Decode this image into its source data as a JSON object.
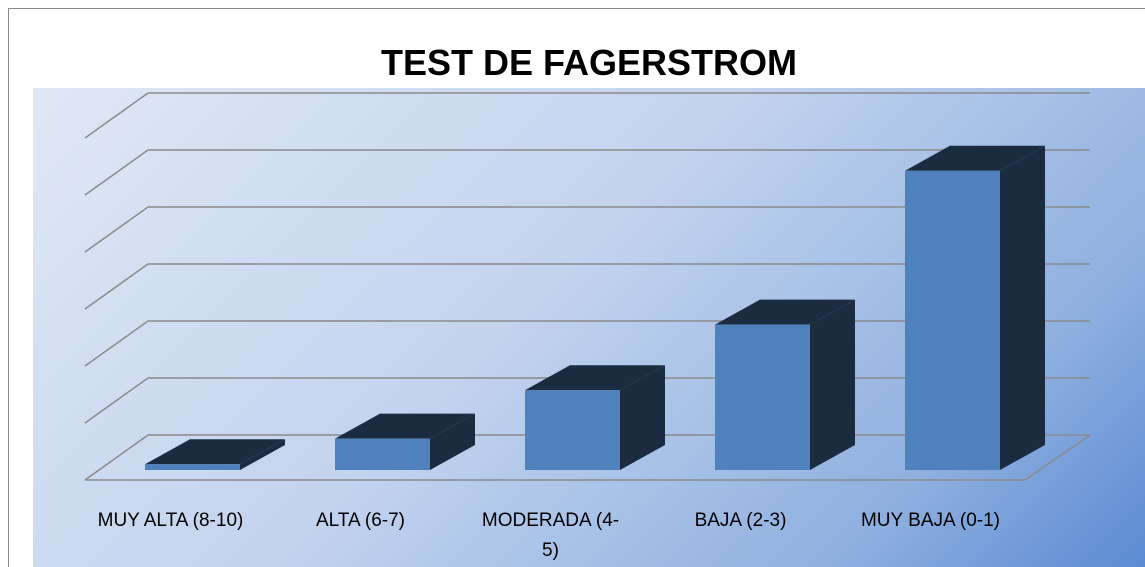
{
  "chart_data": {
    "type": "bar3d",
    "title": "TEST DE FAGERSTROM",
    "categories": [
      "MUY ALTA (8-10)",
      "ALTA (6-7)",
      "MODERADA (4-5)",
      "BAJA (2-3)",
      "MUY BAJA (0-1)"
    ],
    "values": [
      0.1,
      0.55,
      1.4,
      2.55,
      5.25
    ],
    "color": "#4f81bd",
    "side_color": "#1b2b40",
    "ylim": [
      0,
      6
    ],
    "yticks": [
      0,
      1,
      2,
      3,
      4,
      5,
      6
    ],
    "grid": true
  }
}
